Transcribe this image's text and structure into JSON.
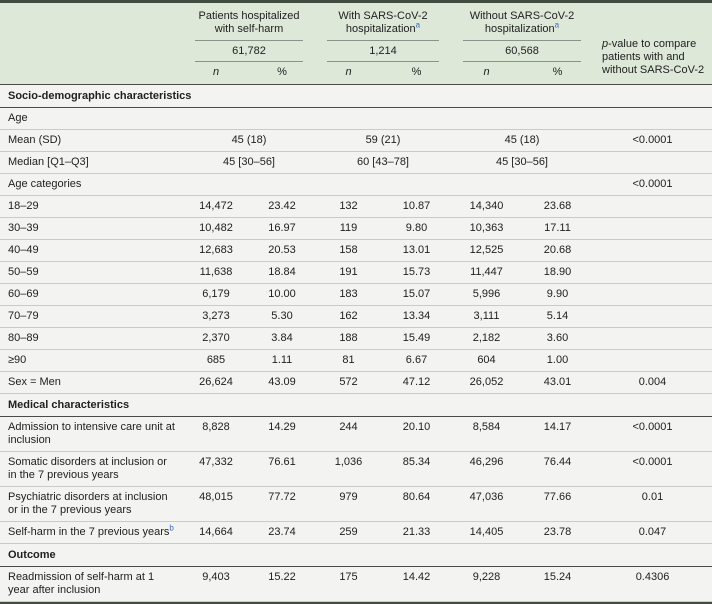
{
  "colors": {
    "header_bg": "#dee8d9",
    "frame_dark": "#404d40",
    "section_rule": "#4b4b4b",
    "row_rule": "#cacac8",
    "body_bg": "#f3f3f1",
    "footnote_blue": "#3a6cc0"
  },
  "table": {
    "groups": [
      {
        "line1": "Patients hospitalized",
        "line2": "with self-harm",
        "sup": "",
        "total": "61,782"
      },
      {
        "line1": "With SARS-CoV-2",
        "line2": "hospitalization",
        "sup": "a",
        "total": "1,214"
      },
      {
        "line1": "Without SARS-CoV-2",
        "line2": "hospitalization",
        "sup": "a",
        "total": "60,568"
      }
    ],
    "col_n": "n",
    "col_pct": "%",
    "pvalue_header_italic": "p",
    "pvalue_header_rest": "-value to compare patients with and without SARS-CoV-2",
    "rows": [
      {
        "kind": "section",
        "label": "Socio-demographic characteristics"
      },
      {
        "kind": "data",
        "label": "Age",
        "cells": [
          "",
          "",
          "",
          "",
          "",
          ""
        ],
        "p": ""
      },
      {
        "kind": "span",
        "label": "Mean (SD)",
        "cells": [
          "45 (18)",
          "59 (21)",
          "45 (18)"
        ],
        "p": "<0.0001"
      },
      {
        "kind": "span",
        "label": "Median [Q1–Q3]",
        "cells": [
          "45 [30–56]",
          "60 [43–78]",
          "45 [30–56]"
        ],
        "p": ""
      },
      {
        "kind": "data",
        "label": "Age categories",
        "cells": [
          "",
          "",
          "",
          "",
          "",
          ""
        ],
        "p": "<0.0001"
      },
      {
        "kind": "data",
        "label": "18–29",
        "cells": [
          "14,472",
          "23.42",
          "132",
          "10.87",
          "14,340",
          "23.68"
        ],
        "p": ""
      },
      {
        "kind": "data",
        "label": "30–39",
        "cells": [
          "10,482",
          "16.97",
          "119",
          "9.80",
          "10,363",
          "17.11"
        ],
        "p": ""
      },
      {
        "kind": "data",
        "label": "40–49",
        "cells": [
          "12,683",
          "20.53",
          "158",
          "13.01",
          "12,525",
          "20.68"
        ],
        "p": ""
      },
      {
        "kind": "data",
        "label": "50–59",
        "cells": [
          "11,638",
          "18.84",
          "191",
          "15.73",
          "11,447",
          "18.90"
        ],
        "p": ""
      },
      {
        "kind": "data",
        "label": "60–69",
        "cells": [
          "6,179",
          "10.00",
          "183",
          "15.07",
          "5,996",
          "9.90"
        ],
        "p": ""
      },
      {
        "kind": "data",
        "label": "70–79",
        "cells": [
          "3,273",
          "5.30",
          "162",
          "13.34",
          "3,111",
          "5.14"
        ],
        "p": ""
      },
      {
        "kind": "data",
        "label": "80–89",
        "cells": [
          "2,370",
          "3.84",
          "188",
          "15.49",
          "2,182",
          "3.60"
        ],
        "p": ""
      },
      {
        "kind": "data",
        "label": "≥90",
        "cells": [
          "685",
          "1.11",
          "81",
          "6.67",
          "604",
          "1.00"
        ],
        "p": ""
      },
      {
        "kind": "data",
        "label": "Sex = Men",
        "cells": [
          "26,624",
          "43.09",
          "572",
          "47.12",
          "26,052",
          "43.01"
        ],
        "p": "0.004"
      },
      {
        "kind": "section",
        "label": "Medical characteristics"
      },
      {
        "kind": "data",
        "label": "Admission to intensive care unit at inclusion",
        "cells": [
          "8,828",
          "14.29",
          "244",
          "20.10",
          "8,584",
          "14.17"
        ],
        "p": "<0.0001"
      },
      {
        "kind": "data",
        "label": "Somatic disorders at inclusion or in the 7 previous years",
        "cells": [
          "47,332",
          "76.61",
          "1,036",
          "85.34",
          "46,296",
          "76.44"
        ],
        "p": "<0.0001"
      },
      {
        "kind": "data",
        "label": "Psychiatric disorders at inclusion or in the 7 previous years",
        "cells": [
          "48,015",
          "77.72",
          "979",
          "80.64",
          "47,036",
          "77.66"
        ],
        "p": "0.01"
      },
      {
        "kind": "data",
        "label": "Self-harm in the 7 previous years",
        "sup": "b",
        "cells": [
          "14,664",
          "23.74",
          "259",
          "21.33",
          "14,405",
          "23.78"
        ],
        "p": "0.047"
      },
      {
        "kind": "section",
        "label": "Outcome"
      },
      {
        "kind": "data",
        "label": "Readmission of self-harm at 1 year after inclusion",
        "cells": [
          "9,403",
          "15.22",
          "175",
          "14.42",
          "9,228",
          "15.24"
        ],
        "p": "0.4306"
      }
    ]
  }
}
